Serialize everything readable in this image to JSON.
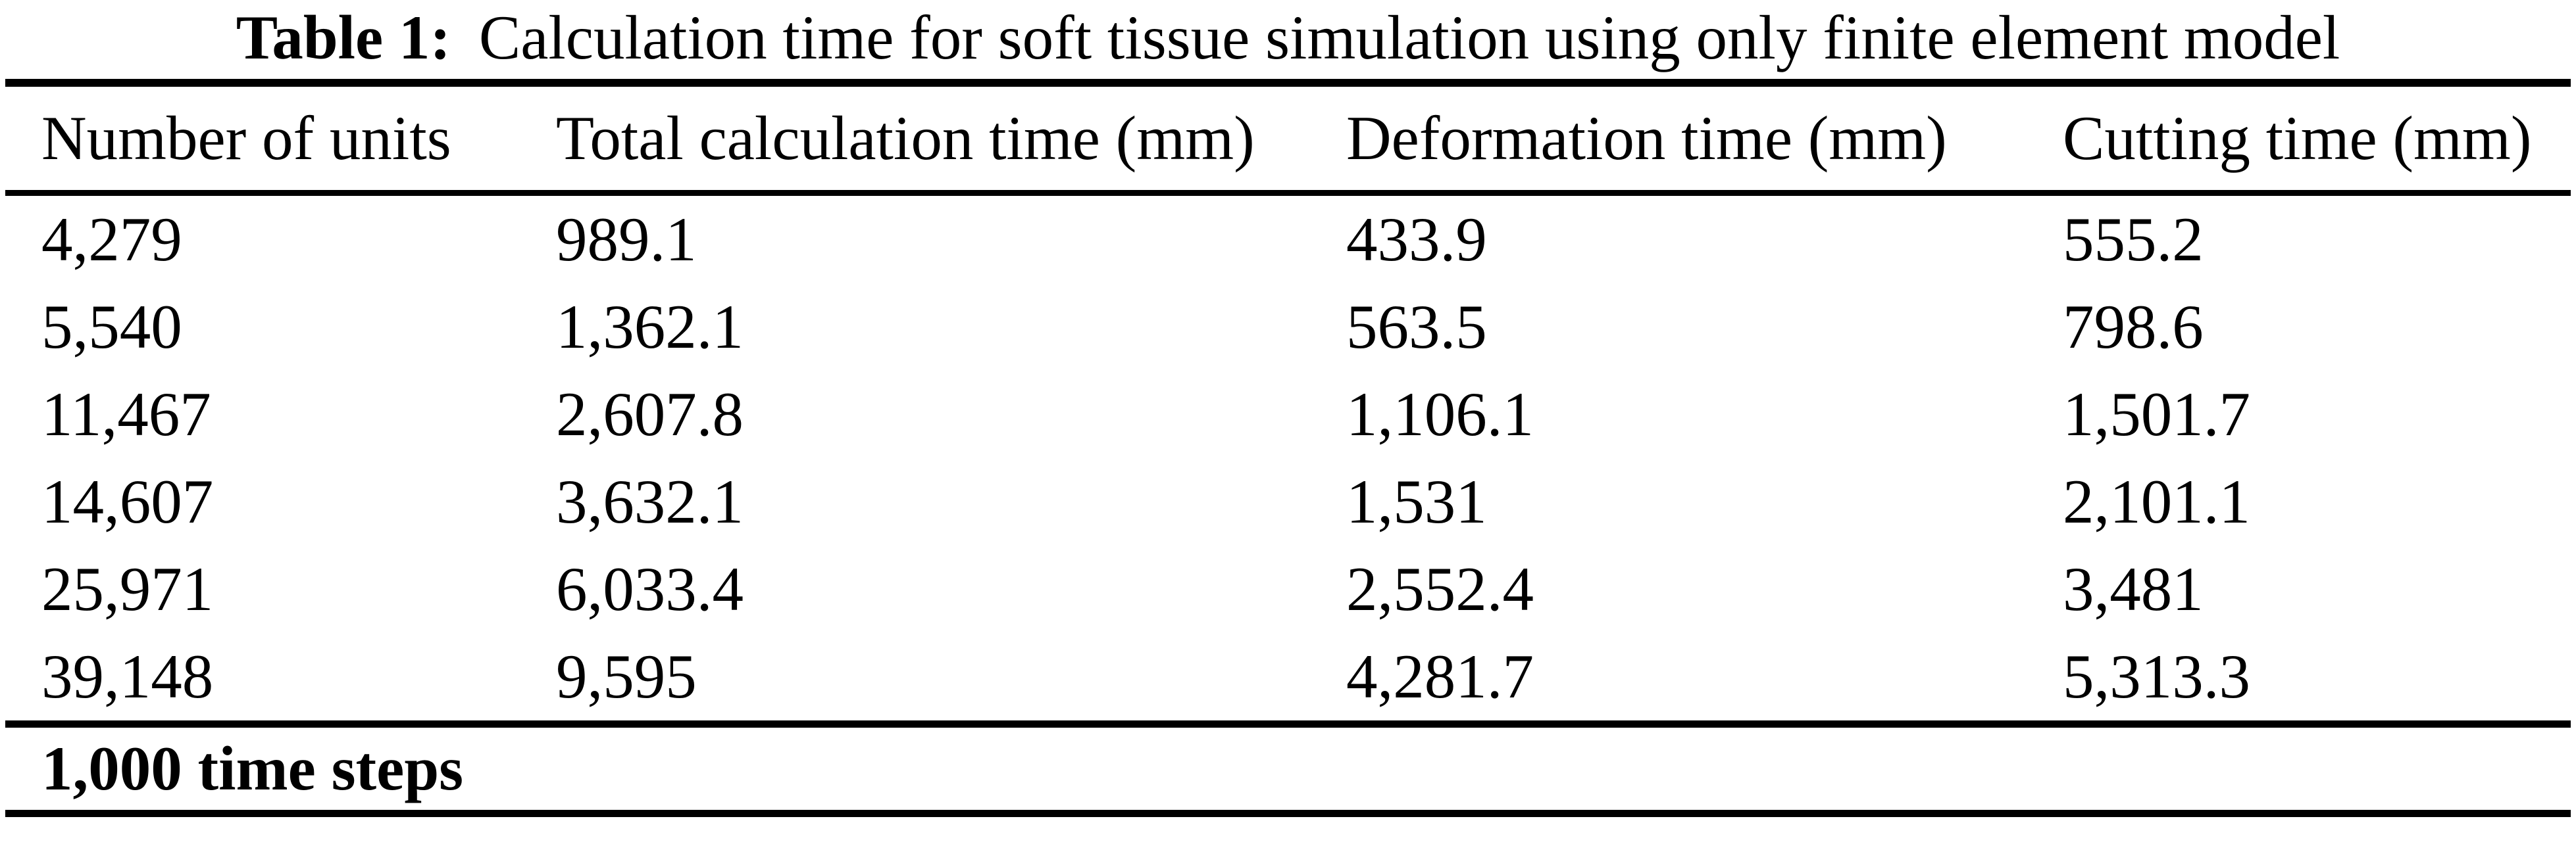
{
  "caption": {
    "label": "Table 1:",
    "text": "Calculation time for soft tissue simulation using only finite element model"
  },
  "table": {
    "columns": [
      "Number of units",
      "Total calculation time (mm)",
      "Deformation time (mm)",
      "Cutting time (mm)"
    ],
    "rows": [
      [
        "4,279",
        "989.1",
        "433.9",
        "555.2"
      ],
      [
        "5,540",
        "1,362.1",
        "563.5",
        "798.6"
      ],
      [
        "11,467",
        "2,607.8",
        "1,106.1",
        "1,501.7"
      ],
      [
        "14,607",
        "3,632.1",
        "1,531",
        "2,101.1"
      ],
      [
        "25,971",
        "6,033.4",
        "2,552.4",
        "3,481"
      ],
      [
        "39,148",
        "9,595",
        "4,281.7",
        "5,313.3"
      ]
    ],
    "footer": "1,000 time steps"
  },
  "colors": {
    "ink": "#000000",
    "paper": "#ffffff"
  }
}
